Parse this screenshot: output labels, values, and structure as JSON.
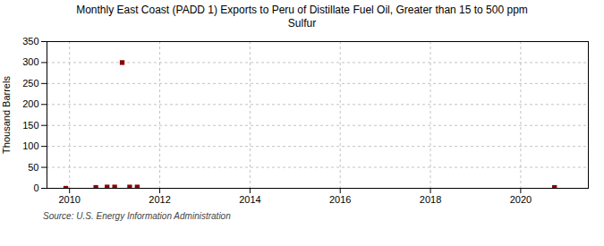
{
  "chart_data": {
    "type": "scatter",
    "title": "Monthly East Coast (PADD 1) Exports to Peru of Distillate Fuel Oil, Greater than 15 to 500 ppm\nSulfur",
    "ylabel": "Thousand Barrels",
    "source": "Source: U.S. Energy Information Administration",
    "x": [
      2009.917,
      2010.583,
      2010.833,
      2011.0,
      2011.167,
      2011.333,
      2011.5,
      2020.75
    ],
    "values": [
      0,
      2,
      3,
      3,
      300,
      3,
      3,
      2
    ],
    "color": "#8b0000",
    "marker": "square",
    "xlim": [
      2009.5,
      2021.5
    ],
    "ylim": [
      0,
      350
    ],
    "xticks": [
      2010,
      2012,
      2014,
      2016,
      2018,
      2020
    ],
    "yticks": [
      0,
      50,
      100,
      150,
      200,
      250,
      300,
      350
    ],
    "grid": true
  }
}
